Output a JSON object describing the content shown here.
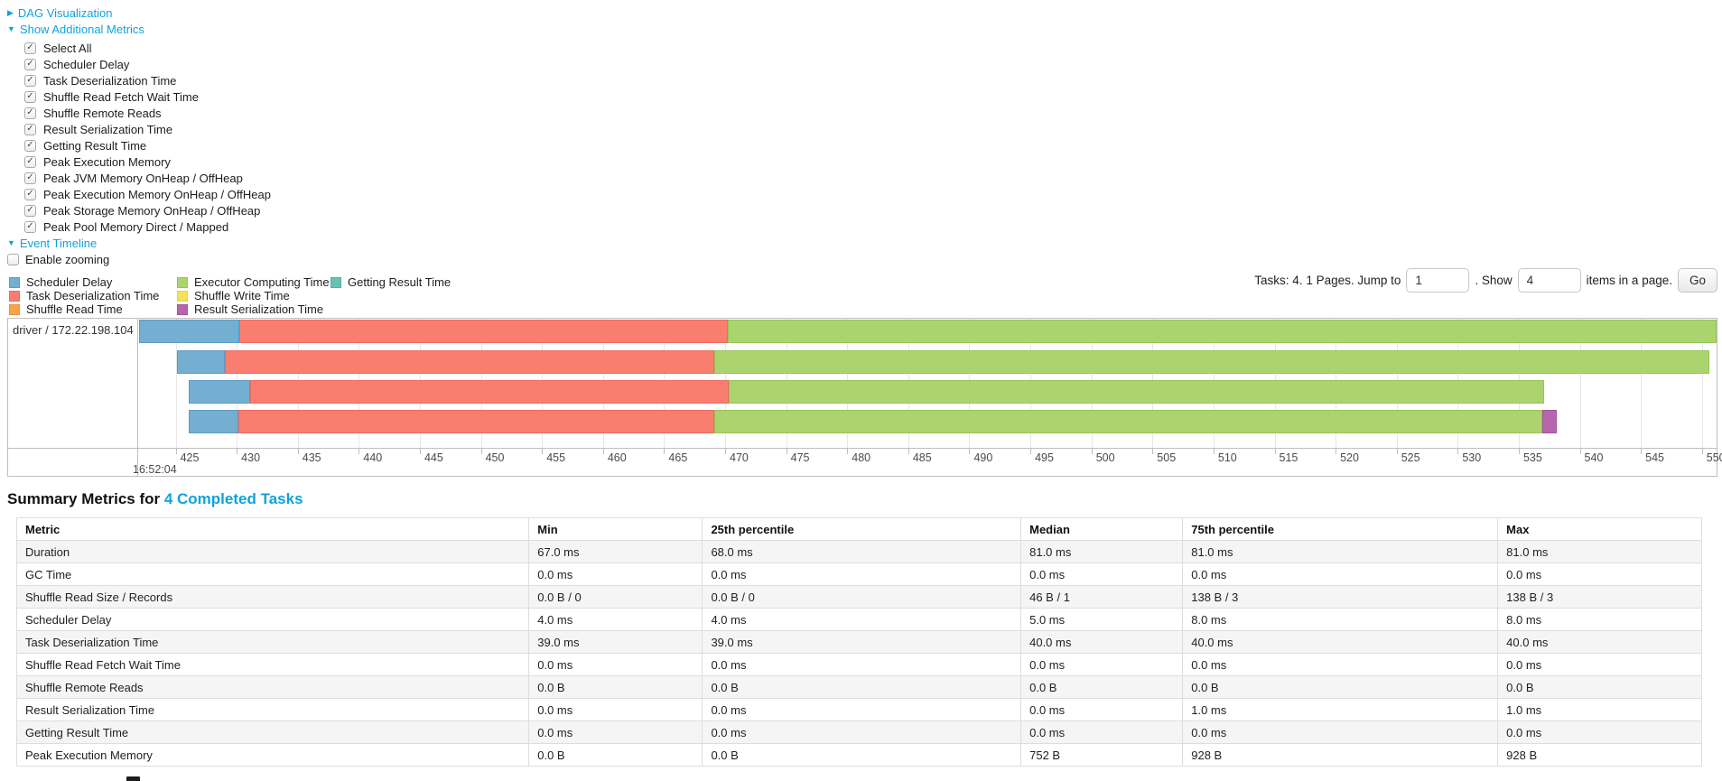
{
  "icons": {
    "collapsed_arrow": "▶",
    "expanded_arrow": "▼",
    "check": "✓"
  },
  "panels": {
    "dag": {
      "label": "DAG Visualization"
    },
    "metrics": {
      "label": "Show Additional Metrics",
      "items": [
        "Select All",
        "Scheduler Delay",
        "Task Deserialization Time",
        "Shuffle Read Fetch Wait Time",
        "Shuffle Remote Reads",
        "Result Serialization Time",
        "Getting Result Time",
        "Peak Execution Memory",
        "Peak JVM Memory OnHeap / OffHeap",
        "Peak Execution Memory OnHeap / OffHeap",
        "Peak Storage Memory OnHeap / OffHeap",
        "Peak Pool Memory Direct / Mapped"
      ]
    },
    "event_timeline": {
      "label": "Event Timeline"
    },
    "enable_zooming": {
      "label": "Enable zooming",
      "checked": false
    }
  },
  "legend": {
    "columns": [
      [
        {
          "label": "Scheduler Delay",
          "color": "scheduler_delay"
        },
        {
          "label": "Task Deserialization Time",
          "color": "task_deserialization"
        },
        {
          "label": "Shuffle Read Time",
          "color": "shuffle_read"
        }
      ],
      [
        {
          "label": "Executor Computing Time",
          "color": "executor_computing"
        },
        {
          "label": "Shuffle Write Time",
          "color": "shuffle_write"
        },
        {
          "label": "Result Serialization Time",
          "color": "result_serialization"
        }
      ],
      [
        {
          "label": "Getting Result Time",
          "color": "getting_result"
        }
      ]
    ]
  },
  "pagination": {
    "prefix": "Tasks: 4. 1 Pages. Jump to",
    "jump_value": "1",
    "mid": ". Show",
    "show_value": "4",
    "suffix": "items in a page.",
    "go": "Go"
  },
  "timeline": {
    "group": "driver / 172.22.198.104",
    "axis": {
      "min": 422,
      "max": 551.2,
      "tick_start": 425,
      "tick_end": 550,
      "tick_step": 5,
      "major": "16:52:04"
    },
    "colors": {
      "scheduler_delay": {
        "fill": "#74afd1",
        "border": "#5a9cc4"
      },
      "task_deserialization": {
        "fill": "#f97e70",
        "border": "#ef6a5e"
      },
      "shuffle_read": {
        "fill": "#f6a44c",
        "border": "#ec9339"
      },
      "executor_computing": {
        "fill": "#abd46f",
        "border": "#98c457"
      },
      "shuffle_write": {
        "fill": "#f3e15a",
        "border": "#e6d245"
      },
      "result_serialization": {
        "fill": "#b666ae",
        "border": "#a5539c"
      },
      "getting_result": {
        "fill": "#67c2b2",
        "border": "#52b1a0"
      }
    },
    "bars": [
      {
        "segments": [
          {
            "type": "scheduler_delay",
            "start": 422.0,
            "end": 430.2
          },
          {
            "type": "task_deserialization",
            "start": 430.2,
            "end": 470.2
          },
          {
            "type": "executor_computing",
            "start": 470.2,
            "end": 551.2
          }
        ]
      },
      {
        "segments": [
          {
            "type": "scheduler_delay",
            "start": 425.1,
            "end": 429.0
          },
          {
            "type": "task_deserialization",
            "start": 429.0,
            "end": 469.1
          },
          {
            "type": "executor_computing",
            "start": 469.1,
            "end": 550.6
          }
        ]
      },
      {
        "segments": [
          {
            "type": "scheduler_delay",
            "start": 426.1,
            "end": 431.1
          },
          {
            "type": "task_deserialization",
            "start": 431.1,
            "end": 470.3
          },
          {
            "type": "executor_computing",
            "start": 470.3,
            "end": 537.1
          }
        ]
      },
      {
        "segments": [
          {
            "type": "scheduler_delay",
            "start": 426.1,
            "end": 430.1
          },
          {
            "type": "task_deserialization",
            "start": 430.1,
            "end": 469.1
          },
          {
            "type": "executor_computing",
            "start": 469.1,
            "end": 536.9
          },
          {
            "type": "result_serialization",
            "start": 536.9,
            "end": 538.1
          }
        ]
      }
    ]
  },
  "summary": {
    "title_prefix": "Summary Metrics for ",
    "title_link": "4 Completed Tasks",
    "columns": [
      "Metric",
      "Min",
      "25th percentile",
      "Median",
      "75th percentile",
      "Max"
    ],
    "rows": [
      [
        "Duration",
        "67.0 ms",
        "68.0 ms",
        "81.0 ms",
        "81.0 ms",
        "81.0 ms"
      ],
      [
        "GC Time",
        "0.0 ms",
        "0.0 ms",
        "0.0 ms",
        "0.0 ms",
        "0.0 ms"
      ],
      [
        "Shuffle Read Size / Records",
        "0.0 B / 0",
        "0.0 B / 0",
        "46 B / 1",
        "138 B / 3",
        "138 B / 3"
      ],
      [
        "Scheduler Delay",
        "4.0 ms",
        "4.0 ms",
        "5.0 ms",
        "8.0 ms",
        "8.0 ms"
      ],
      [
        "Task Deserialization Time",
        "39.0 ms",
        "39.0 ms",
        "40.0 ms",
        "40.0 ms",
        "40.0 ms"
      ],
      [
        "Shuffle Read Fetch Wait Time",
        "0.0 ms",
        "0.0 ms",
        "0.0 ms",
        "0.0 ms",
        "0.0 ms"
      ],
      [
        "Shuffle Remote Reads",
        "0.0 B",
        "0.0 B",
        "0.0 B",
        "0.0 B",
        "0.0 B"
      ],
      [
        "Result Serialization Time",
        "0.0 ms",
        "0.0 ms",
        "0.0 ms",
        "1.0 ms",
        "1.0 ms"
      ],
      [
        "Getting Result Time",
        "0.0 ms",
        "0.0 ms",
        "0.0 ms",
        "0.0 ms",
        "0.0 ms"
      ],
      [
        "Peak Execution Memory",
        "0.0 B",
        "0.0 B",
        "752 B",
        "928 B",
        "928 B"
      ]
    ]
  }
}
